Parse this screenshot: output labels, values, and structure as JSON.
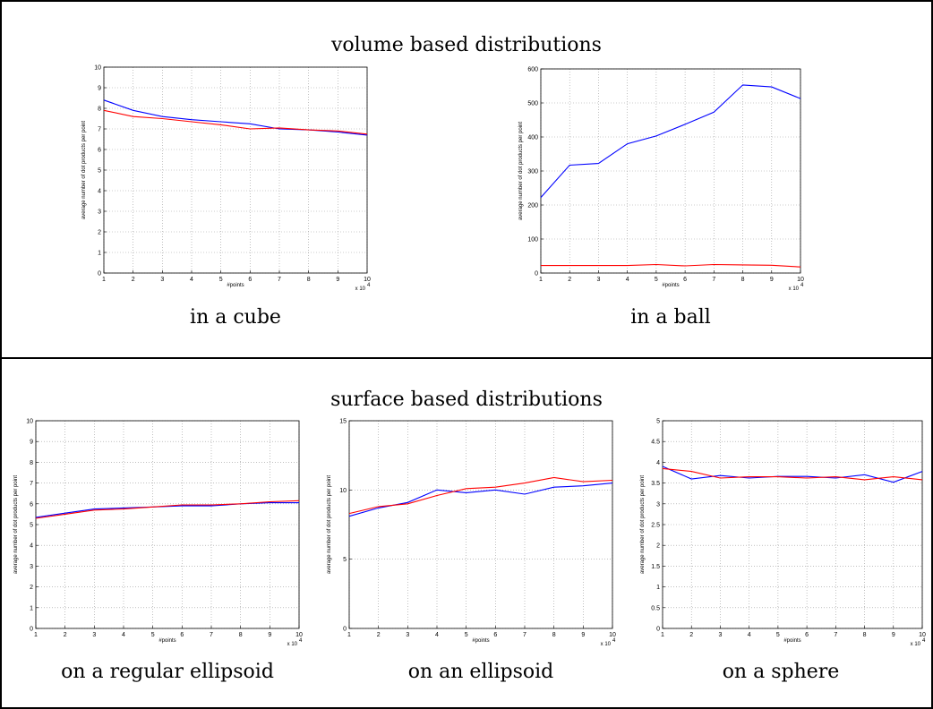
{
  "sections": {
    "volume_title": "volume based distributions",
    "surface_title": "surface based distributions"
  },
  "colors": {
    "blue": "#0000ff",
    "red": "#ff0000",
    "grid": "#999999"
  },
  "chart_data": [
    {
      "id": "cube",
      "type": "line",
      "caption": "in a cube",
      "x": [
        1,
        2,
        3,
        4,
        5,
        6,
        7,
        8,
        9,
        10
      ],
      "xticks": [
        "1",
        "2",
        "3",
        "4",
        "5",
        "6",
        "7",
        "8",
        "9",
        "10"
      ],
      "yticks": [
        "0",
        "1",
        "2",
        "3",
        "4",
        "5",
        "6",
        "7",
        "8",
        "9",
        "10"
      ],
      "xlabel": "#points",
      "ylabel": "average number of dot products per point",
      "xmultiplier": "x 10",
      "xexp": "4",
      "xlim": [
        1,
        10
      ],
      "ylim": [
        0,
        10
      ],
      "grid": true,
      "series": [
        {
          "color": "#0000ff",
          "values": [
            8.4,
            7.9,
            7.6,
            7.45,
            7.35,
            7.25,
            7.0,
            6.95,
            6.85,
            6.7
          ]
        },
        {
          "color": "#ff0000",
          "values": [
            7.9,
            7.6,
            7.5,
            7.35,
            7.2,
            7.0,
            7.05,
            6.95,
            6.9,
            6.75
          ]
        }
      ]
    },
    {
      "id": "ball",
      "type": "line",
      "caption": "in a ball",
      "x": [
        1,
        2,
        3,
        4,
        5,
        6,
        7,
        8,
        9,
        10
      ],
      "xticks": [
        "1",
        "2",
        "3",
        "4",
        "5",
        "6",
        "7",
        "8",
        "9",
        "10"
      ],
      "yticks": [
        "0",
        "100",
        "200",
        "300",
        "400",
        "500",
        "600"
      ],
      "xlabel": "#points",
      "ylabel": "average number of dot products per point",
      "xmultiplier": "x 10",
      "xexp": "4",
      "xlim": [
        1,
        10
      ],
      "ylim": [
        0,
        600
      ],
      "grid": true,
      "series": [
        {
          "color": "#0000ff",
          "values": [
            222,
            317,
            322,
            380,
            403,
            437,
            473,
            553,
            547,
            513
          ]
        },
        {
          "color": "#ff0000",
          "values": [
            22,
            22,
            22,
            22,
            25,
            21,
            25,
            24,
            23,
            18
          ]
        }
      ]
    },
    {
      "id": "regular-ellipsoid",
      "type": "line",
      "caption": "on a regular ellipsoid",
      "x": [
        1,
        2,
        3,
        4,
        5,
        6,
        7,
        8,
        9,
        10
      ],
      "xticks": [
        "1",
        "2",
        "3",
        "4",
        "5",
        "6",
        "7",
        "8",
        "9",
        "10"
      ],
      "yticks": [
        "0",
        "1",
        "2",
        "3",
        "4",
        "5",
        "6",
        "7",
        "8",
        "9",
        "10"
      ],
      "xlabel": "#points",
      "ylabel": "average number of dot products per point",
      "xmultiplier": "x 10",
      "xexp": "4",
      "xlim": [
        1,
        10
      ],
      "ylim": [
        0,
        10
      ],
      "grid": true,
      "series": [
        {
          "color": "#0000ff",
          "values": [
            5.35,
            5.55,
            5.75,
            5.8,
            5.85,
            5.9,
            5.9,
            6.0,
            6.05,
            6.05
          ]
        },
        {
          "color": "#ff0000",
          "values": [
            5.3,
            5.5,
            5.7,
            5.75,
            5.85,
            5.95,
            5.95,
            6.0,
            6.1,
            6.15
          ]
        }
      ]
    },
    {
      "id": "ellipsoid",
      "type": "line",
      "caption": "on an ellipsoid",
      "x": [
        1,
        2,
        3,
        4,
        5,
        6,
        7,
        8,
        9,
        10
      ],
      "xticks": [
        "1",
        "2",
        "3",
        "4",
        "5",
        "6",
        "7",
        "8",
        "9",
        "10"
      ],
      "yticks": [
        "0",
        "5",
        "10",
        "15"
      ],
      "xlabel": "#points",
      "ylabel": "average number of dot products per point",
      "xmultiplier": "x 10",
      "xexp": "4",
      "xlim": [
        1,
        10
      ],
      "ylim": [
        0,
        15
      ],
      "grid": true,
      "series": [
        {
          "color": "#0000ff",
          "values": [
            8.1,
            8.7,
            9.1,
            10.0,
            9.8,
            10.0,
            9.7,
            10.2,
            10.3,
            10.5
          ]
        },
        {
          "color": "#ff0000",
          "values": [
            8.3,
            8.8,
            9.0,
            9.6,
            10.1,
            10.2,
            10.5,
            10.9,
            10.6,
            10.7
          ]
        }
      ]
    },
    {
      "id": "sphere",
      "type": "line",
      "caption": "on a sphere",
      "x": [
        1,
        2,
        3,
        4,
        5,
        6,
        7,
        8,
        9,
        10
      ],
      "xticks": [
        "1",
        "2",
        "3",
        "4",
        "5",
        "6",
        "7",
        "8",
        "9",
        "10"
      ],
      "yticks": [
        "0",
        "0.5",
        "1",
        "1.5",
        "2",
        "2.5",
        "3",
        "3.5",
        "4",
        "4.5",
        "5"
      ],
      "xlabel": "#points",
      "ylabel": "average number of dot products per point",
      "xmultiplier": "x 10",
      "xexp": "4",
      "xlim": [
        1,
        10
      ],
      "ylim": [
        0,
        5
      ],
      "grid": true,
      "series": [
        {
          "color": "#0000ff",
          "values": [
            3.9,
            3.6,
            3.68,
            3.62,
            3.66,
            3.66,
            3.62,
            3.7,
            3.52,
            3.78
          ]
        },
        {
          "color": "#ff0000",
          "values": [
            3.85,
            3.78,
            3.62,
            3.65,
            3.65,
            3.62,
            3.65,
            3.58,
            3.65,
            3.58
          ]
        }
      ]
    }
  ]
}
